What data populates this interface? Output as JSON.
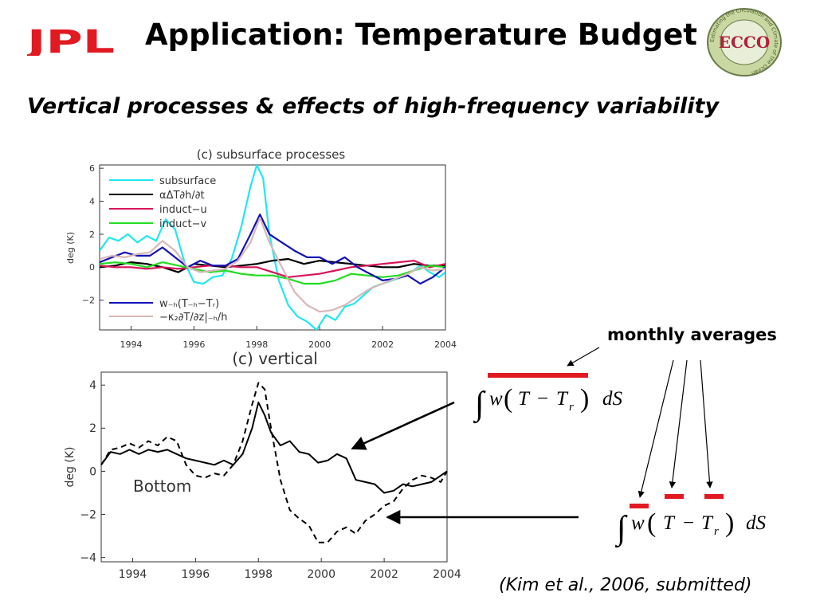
{
  "header": {
    "title": "Application: Temperature Budget",
    "subtitle": "Vertical processes & effects of high-frequency variability",
    "logo_text": "JPL",
    "seal_text": "ECCO",
    "seal_ring_text": "Estimating the Circulation and Climate of the Ocean"
  },
  "annotations": {
    "monthly_averages": "monthly averages",
    "citation": "(Kim et al., 2006, submitted)",
    "formula1": {
      "w": "w",
      "T": "T",
      "minus": "−",
      "Tr": "T",
      "r": "r",
      "dS": "dS"
    },
    "formula2": {
      "w": "w",
      "T": "T",
      "minus": "−",
      "Tr": "T",
      "r": "r",
      "dS": "dS"
    }
  },
  "colors": {
    "brand_red": "#e11a22",
    "cyan": "#20e8ee",
    "red": "#d8155a",
    "green": "#22dd22",
    "blue": "#1212b8",
    "pink": "#d8b8b8",
    "black": "#000000"
  },
  "chart_data": [
    {
      "type": "line",
      "title": "(c) subsurface processes",
      "xlabel": "",
      "ylabel": "deg (K)",
      "xlim": [
        1993,
        2004
      ],
      "ylim": [
        -3.8,
        6.2
      ],
      "xticks": [
        1994,
        1996,
        1998,
        2000,
        2002,
        2004
      ],
      "yticks": [
        -2,
        0,
        2,
        4,
        6
      ],
      "grid": false,
      "legend": "top-left (4 entries) and bottom-left (2 entries)",
      "series": [
        {
          "name": "subsurface",
          "color": "#20e8ee",
          "dash": "",
          "x": [
            1993.0,
            1993.3,
            1993.6,
            1993.9,
            1994.2,
            1994.5,
            1994.8,
            1995.1,
            1995.4,
            1995.7,
            1996.0,
            1996.3,
            1996.6,
            1996.9,
            1997.2,
            1997.5,
            1997.8,
            1998.0,
            1998.2,
            1998.4,
            1998.7,
            1999.0,
            1999.3,
            1999.6,
            1999.9,
            2000.2,
            2000.5,
            2000.8,
            2001.1,
            2001.4,
            2001.7,
            2002.0,
            2002.3,
            2002.6,
            2002.9,
            2003.2,
            2003.5,
            2003.8,
            2004.0
          ],
          "y": [
            1.0,
            1.8,
            1.6,
            2.0,
            1.5,
            1.9,
            1.6,
            2.9,
            2.3,
            0.3,
            -0.9,
            -1.0,
            -0.6,
            -0.5,
            0.5,
            2.4,
            4.9,
            6.2,
            5.4,
            2.0,
            -0.8,
            -2.3,
            -3.0,
            -3.3,
            -3.8,
            -2.9,
            -3.2,
            -2.4,
            -2.2,
            -1.7,
            -1.2,
            -1.0,
            -0.8,
            -0.6,
            -0.3,
            0.1,
            -0.3,
            -0.6,
            -0.3
          ]
        },
        {
          "name": "αΔT∂h/∂t",
          "color": "#000000",
          "dash": "",
          "x": [
            1993.0,
            1993.5,
            1994.0,
            1994.5,
            1995.0,
            1995.5,
            1996.0,
            1996.5,
            1997.0,
            1997.5,
            1998.0,
            1998.5,
            1999.0,
            1999.5,
            2000.0,
            2000.5,
            2001.0,
            2001.5,
            2002.0,
            2002.5,
            2003.0,
            2003.5,
            2004.0
          ],
          "y": [
            0.0,
            0.1,
            0.3,
            0.2,
            0.0,
            -0.3,
            0.2,
            0.1,
            0.0,
            0.1,
            0.2,
            0.4,
            0.5,
            0.2,
            0.4,
            0.3,
            0.2,
            0.1,
            0.0,
            0.0,
            0.2,
            0.1,
            0.1
          ]
        },
        {
          "name": "induct−u",
          "color": "#d8155a",
          "dash": "",
          "x": [
            1993.0,
            1993.5,
            1994.0,
            1994.5,
            1995.0,
            1995.5,
            1996.0,
            1996.5,
            1997.0,
            1997.5,
            1998.0,
            1998.5,
            1999.0,
            1999.5,
            2000.0,
            2000.5,
            2001.0,
            2001.5,
            2002.0,
            2002.5,
            2003.0,
            2003.5,
            2004.0
          ],
          "y": [
            0.1,
            0.0,
            0.0,
            -0.1,
            0.0,
            -0.1,
            0.0,
            0.1,
            0.1,
            0.0,
            0.0,
            -0.3,
            -0.6,
            -0.5,
            -0.4,
            -0.2,
            0.0,
            0.1,
            0.2,
            0.3,
            0.4,
            0.0,
            0.2
          ]
        },
        {
          "name": "induct−v",
          "color": "#22dd22",
          "dash": "",
          "x": [
            1993.0,
            1993.5,
            1994.0,
            1994.5,
            1995.0,
            1995.5,
            1996.0,
            1996.5,
            1997.0,
            1997.5,
            1998.0,
            1998.5,
            1999.0,
            1999.5,
            2000.0,
            2000.5,
            2001.0,
            2001.5,
            2002.0,
            2002.5,
            2003.0,
            2003.5,
            2004.0
          ],
          "y": [
            0.2,
            0.3,
            0.2,
            0.0,
            0.3,
            0.1,
            -0.1,
            -0.3,
            -0.2,
            -0.4,
            -0.5,
            -0.5,
            -0.7,
            -1.0,
            -1.0,
            -0.8,
            -0.4,
            -0.5,
            -0.6,
            -0.5,
            -0.2,
            0.1,
            0.0
          ]
        },
        {
          "name": "w₋ₕ(T₋ₕ−Tᵣ)",
          "color": "#1212b8",
          "dash": "",
          "x": [
            1993.0,
            1993.4,
            1993.8,
            1994.2,
            1994.6,
            1995.0,
            1995.4,
            1995.8,
            1996.2,
            1996.6,
            1997.0,
            1997.4,
            1997.8,
            1998.1,
            1998.4,
            1998.8,
            1999.2,
            1999.6,
            2000.0,
            2000.4,
            2000.8,
            2001.2,
            2001.6,
            2002.0,
            2002.4,
            2002.8,
            2003.2,
            2003.6,
            2004.0
          ],
          "y": [
            0.3,
            0.6,
            0.9,
            0.7,
            0.7,
            1.2,
            0.6,
            0.0,
            0.4,
            0.1,
            0.1,
            0.5,
            2.0,
            3.2,
            2.0,
            1.5,
            1.0,
            0.6,
            0.6,
            0.2,
            0.6,
            0.0,
            -0.4,
            -0.8,
            -0.7,
            -0.5,
            -1.0,
            -0.6,
            0.0
          ]
        },
        {
          "name": "−κ₂∂T/∂z|₋ₕ/h",
          "color": "#d8b8b8",
          "dash": "",
          "x": [
            1993.0,
            1993.4,
            1993.8,
            1994.2,
            1994.6,
            1995.0,
            1995.4,
            1995.8,
            1996.2,
            1996.6,
            1997.0,
            1997.4,
            1997.8,
            1998.1,
            1998.4,
            1998.8,
            1999.2,
            1999.6,
            2000.0,
            2000.4,
            2000.8,
            2001.2,
            2001.6,
            2002.0,
            2002.4,
            2002.8,
            2003.2,
            2003.6,
            2004.0
          ],
          "y": [
            0.5,
            0.7,
            0.6,
            0.8,
            0.9,
            1.6,
            1.0,
            0.0,
            -0.3,
            -0.2,
            -0.1,
            0.4,
            1.5,
            3.0,
            1.5,
            0.0,
            -1.5,
            -2.3,
            -2.7,
            -2.6,
            -2.3,
            -1.8,
            -1.3,
            -1.0,
            -0.7,
            -0.4,
            0.0,
            -0.2,
            -0.1
          ]
        }
      ]
    },
    {
      "type": "line",
      "title": "(c) vertical",
      "xlabel": "",
      "ylabel": "deg (K)",
      "xlim": [
        1993,
        2004
      ],
      "ylim": [
        -4.2,
        4.6
      ],
      "xticks": [
        1994,
        1996,
        1998,
        2000,
        2002,
        2004
      ],
      "yticks": [
        -4,
        -2,
        0,
        2,
        4
      ],
      "grid": false,
      "annotation": "Bottom",
      "series": [
        {
          "color": "#000000",
          "dash": "",
          "x": [
            1993.0,
            1993.3,
            1993.6,
            1993.9,
            1994.2,
            1994.5,
            1994.8,
            1995.1,
            1995.4,
            1995.7,
            1996.0,
            1996.3,
            1996.6,
            1996.9,
            1997.2,
            1997.5,
            1997.8,
            1998.0,
            1998.2,
            1998.4,
            1998.7,
            1999.0,
            1999.3,
            1999.6,
            1999.9,
            2000.2,
            2000.5,
            2000.8,
            2001.1,
            2001.4,
            2001.7,
            2002.0,
            2002.3,
            2002.6,
            2002.9,
            2003.2,
            2003.5,
            2003.8,
            2004.0
          ],
          "y": [
            0.3,
            0.9,
            0.8,
            1.0,
            0.8,
            1.0,
            0.9,
            1.0,
            0.8,
            0.6,
            0.5,
            0.4,
            0.3,
            0.5,
            0.3,
            0.8,
            2.0,
            3.2,
            2.6,
            1.8,
            1.2,
            1.4,
            0.9,
            0.8,
            0.4,
            0.5,
            0.8,
            0.6,
            -0.4,
            -0.5,
            -0.6,
            -1.0,
            -0.9,
            -0.6,
            -0.7,
            -0.6,
            -0.5,
            -0.2,
            0.0
          ]
        },
        {
          "color": "#000000",
          "dash": "7,5",
          "x": [
            1993.0,
            1993.3,
            1993.6,
            1993.9,
            1994.2,
            1994.5,
            1994.8,
            1995.1,
            1995.4,
            1995.7,
            1996.0,
            1996.3,
            1996.6,
            1996.9,
            1997.2,
            1997.5,
            1997.8,
            1998.0,
            1998.2,
            1998.4,
            1998.7,
            1999.0,
            1999.3,
            1999.6,
            1999.9,
            2000.2,
            2000.5,
            2000.8,
            2001.1,
            2001.4,
            2001.7,
            2002.0,
            2002.3,
            2002.6,
            2002.9,
            2003.2,
            2003.5,
            2003.8,
            2004.0
          ],
          "y": [
            0.3,
            1.0,
            1.1,
            1.3,
            1.1,
            1.4,
            1.2,
            1.6,
            1.4,
            0.3,
            -0.2,
            -0.3,
            -0.1,
            -0.2,
            0.3,
            1.4,
            3.1,
            4.1,
            3.8,
            2.0,
            -0.4,
            -1.8,
            -2.2,
            -2.5,
            -3.3,
            -3.3,
            -2.8,
            -2.6,
            -2.9,
            -2.3,
            -2.0,
            -1.6,
            -1.4,
            -0.8,
            -0.4,
            -0.2,
            -0.3,
            -0.5,
            0.0
          ]
        }
      ]
    }
  ]
}
